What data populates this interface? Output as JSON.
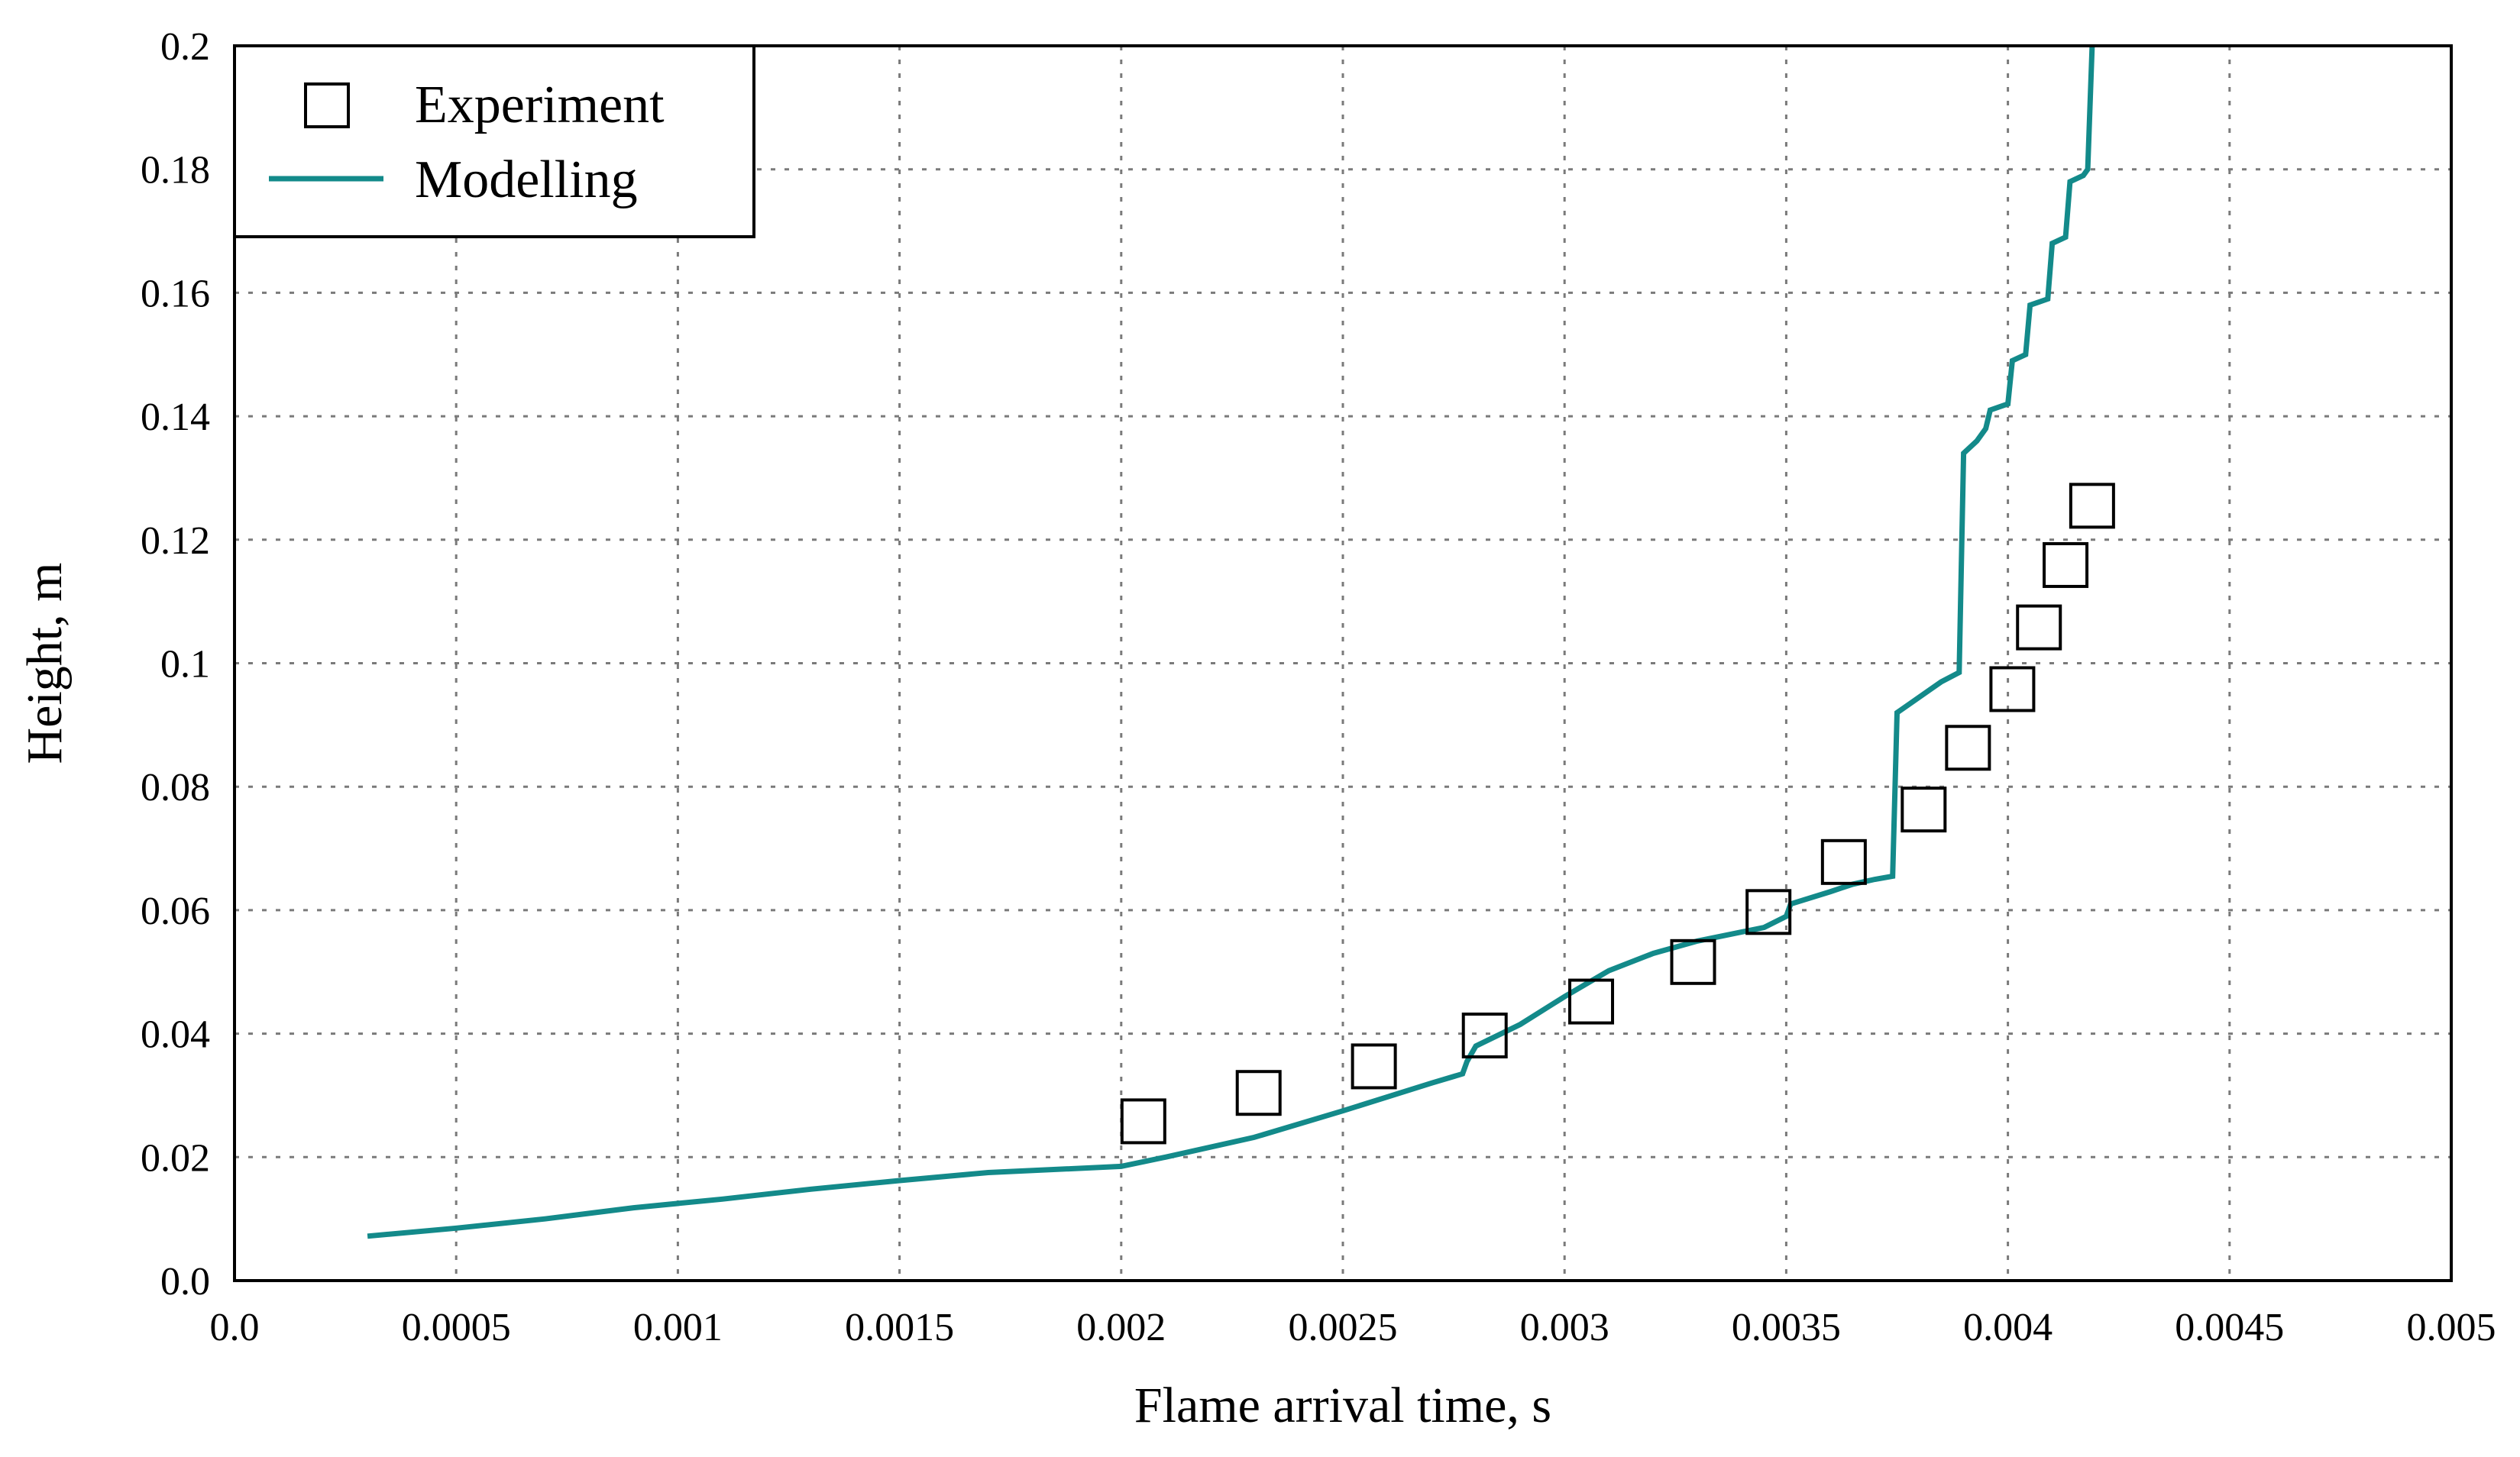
{
  "chart_data": {
    "type": "scatter",
    "title": "",
    "xlabel": "Flame arrival time, s",
    "ylabel": "Height, m",
    "xlim": [
      0.0,
      0.005
    ],
    "ylim": [
      0.0,
      0.2
    ],
    "x_ticks": [
      "0.0",
      "0.0005",
      "0.001",
      "0.0015",
      "0.002",
      "0.0025",
      "0.003",
      "0.0035",
      "0.004",
      "0.0045",
      "0.005"
    ],
    "y_ticks": [
      "0.0",
      "0.02",
      "0.04",
      "0.06",
      "0.08",
      "0.1",
      "0.12",
      "0.14",
      "0.16",
      "0.18",
      "0.2"
    ],
    "grid": true,
    "legend_position": "top-left",
    "colors": {
      "experiment": "#000000",
      "modelling": "#138a8a"
    },
    "series": [
      {
        "name": "Experiment",
        "kind": "marker-square",
        "points": [
          [
            0.00205,
            0.0258
          ],
          [
            0.00231,
            0.0304
          ],
          [
            0.00257,
            0.0347
          ],
          [
            0.00282,
            0.0397
          ],
          [
            0.00306,
            0.0452
          ],
          [
            0.00329,
            0.0516
          ],
          [
            0.00346,
            0.0597
          ],
          [
            0.00363,
            0.0678
          ],
          [
            0.00381,
            0.0763
          ],
          [
            0.00391,
            0.0863
          ],
          [
            0.00401,
            0.0958
          ],
          [
            0.00407,
            0.1058
          ],
          [
            0.00413,
            0.1159
          ],
          [
            0.00419,
            0.1255
          ]
        ]
      },
      {
        "name": "Modelling",
        "kind": "line",
        "points": [
          [
            0.0003,
            0.0072
          ],
          [
            0.0005,
            0.0085
          ],
          [
            0.0007,
            0.01
          ],
          [
            0.0009,
            0.0118
          ],
          [
            0.0011,
            0.0132
          ],
          [
            0.0013,
            0.0148
          ],
          [
            0.0015,
            0.0162
          ],
          [
            0.0017,
            0.0175
          ],
          [
            0.002,
            0.0185
          ],
          [
            0.0021,
            0.02
          ],
          [
            0.0023,
            0.0232
          ],
          [
            0.0025,
            0.0275
          ],
          [
            0.0027,
            0.032
          ],
          [
            0.00277,
            0.0335
          ],
          [
            0.00278,
            0.0355
          ],
          [
            0.0028,
            0.038
          ],
          [
            0.0029,
            0.0415
          ],
          [
            0.003,
            0.046
          ],
          [
            0.0031,
            0.0502
          ],
          [
            0.0032,
            0.053
          ],
          [
            0.0033,
            0.055
          ],
          [
            0.00345,
            0.0572
          ],
          [
            0.0035,
            0.059
          ],
          [
            0.00351,
            0.061
          ],
          [
            0.0036,
            0.063
          ],
          [
            0.00365,
            0.0642
          ],
          [
            0.0037,
            0.065
          ],
          [
            0.00374,
            0.0655
          ],
          [
            0.00375,
            0.092
          ],
          [
            0.00378,
            0.0935
          ],
          [
            0.00382,
            0.0955
          ],
          [
            0.00385,
            0.097
          ],
          [
            0.00389,
            0.0985
          ],
          [
            0.0039,
            0.134
          ],
          [
            0.00393,
            0.136
          ],
          [
            0.00395,
            0.138
          ],
          [
            0.00396,
            0.141
          ],
          [
            0.004,
            0.142
          ],
          [
            0.00401,
            0.149
          ],
          [
            0.00404,
            0.15
          ],
          [
            0.00405,
            0.158
          ],
          [
            0.00409,
            0.159
          ],
          [
            0.0041,
            0.168
          ],
          [
            0.00413,
            0.169
          ],
          [
            0.00414,
            0.178
          ],
          [
            0.00417,
            0.179
          ],
          [
            0.00418,
            0.18
          ],
          [
            0.00419,
            0.2
          ]
        ]
      }
    ]
  }
}
